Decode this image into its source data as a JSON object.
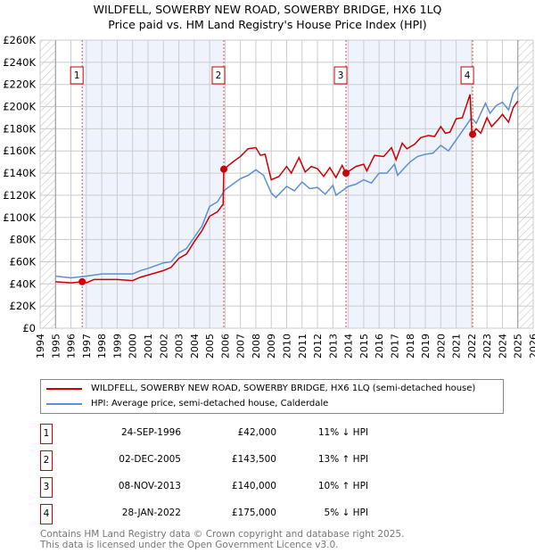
{
  "chart_data": {
    "type": "line",
    "title": "WILDFELL, SOWERBY NEW ROAD, SOWERBY BRIDGE, HX6 1LQ",
    "subtitle": "Price paid vs. HM Land Registry's House Price Index (HPI)",
    "xlim": [
      1994,
      2026
    ],
    "ylim": [
      0,
      260000
    ],
    "x_ticks": [
      "1994",
      "1995",
      "1996",
      "1997",
      "1998",
      "1999",
      "2000",
      "2001",
      "2002",
      "2003",
      "2004",
      "2005",
      "2006",
      "2007",
      "2008",
      "2009",
      "2010",
      "2011",
      "2012",
      "2013",
      "2014",
      "2015",
      "2016",
      "2017",
      "2018",
      "2019",
      "2020",
      "2021",
      "2022",
      "2023",
      "2024",
      "2025",
      "2026"
    ],
    "y_ticks": [
      "£0",
      "£20K",
      "£40K",
      "£60K",
      "£80K",
      "£100K",
      "£120K",
      "£140K",
      "£160K",
      "£180K",
      "£200K",
      "£220K",
      "£240K",
      "£260K"
    ],
    "grid": true,
    "colors": {
      "property": "#cc0000",
      "hpi": "#5b8fd6",
      "band": "#eef3fc"
    },
    "series": [
      {
        "name": "WILDFELL, SOWERBY NEW ROAD, SOWERBY BRIDGE, HX6 1LQ (semi-detached house)",
        "key": "property",
        "points": [
          [
            1995,
            42
          ],
          [
            1996,
            41
          ],
          [
            1996.73,
            42
          ],
          [
            1997,
            41
          ],
          [
            1997.5,
            44
          ],
          [
            1998,
            44
          ],
          [
            1999,
            44
          ],
          [
            2000,
            43
          ],
          [
            2000.5,
            46
          ],
          [
            2001,
            48
          ],
          [
            2002,
            52
          ],
          [
            2002.5,
            55
          ],
          [
            2003,
            63
          ],
          [
            2003.5,
            67
          ],
          [
            2004,
            78
          ],
          [
            2004.5,
            88
          ],
          [
            2005,
            101
          ],
          [
            2005.5,
            105
          ],
          [
            2005.88,
            112
          ],
          [
            2005.92,
            143.5
          ],
          [
            2006.5,
            150
          ],
          [
            2007,
            155
          ],
          [
            2007.5,
            162
          ],
          [
            2008,
            163
          ],
          [
            2008.3,
            156
          ],
          [
            2008.6,
            157
          ],
          [
            2009,
            134
          ],
          [
            2009.5,
            137
          ],
          [
            2010,
            146
          ],
          [
            2010.3,
            140
          ],
          [
            2010.8,
            154
          ],
          [
            2011.2,
            141
          ],
          [
            2011.6,
            146
          ],
          [
            2012,
            144
          ],
          [
            2012.4,
            137
          ],
          [
            2012.8,
            145
          ],
          [
            2013.2,
            136
          ],
          [
            2013.6,
            147
          ],
          [
            2013.85,
            140
          ],
          [
            2014.5,
            146
          ],
          [
            2015,
            148
          ],
          [
            2015.2,
            142
          ],
          [
            2015.7,
            156
          ],
          [
            2016.3,
            155
          ],
          [
            2016.8,
            163
          ],
          [
            2017.1,
            152
          ],
          [
            2017.5,
            167
          ],
          [
            2017.8,
            162
          ],
          [
            2018.3,
            166
          ],
          [
            2018.7,
            172
          ],
          [
            2019.2,
            174
          ],
          [
            2019.6,
            173
          ],
          [
            2020,
            182
          ],
          [
            2020.3,
            176
          ],
          [
            2020.6,
            177
          ],
          [
            2021,
            189
          ],
          [
            2021.4,
            190
          ],
          [
            2021.9,
            211
          ],
          [
            2022.02,
            175
          ],
          [
            2022.3,
            180
          ],
          [
            2022.6,
            176
          ],
          [
            2023,
            190
          ],
          [
            2023.3,
            182
          ],
          [
            2023.7,
            188
          ],
          [
            2024,
            193
          ],
          [
            2024.4,
            186
          ],
          [
            2024.7,
            199
          ],
          [
            2025,
            205
          ]
        ]
      },
      {
        "name": "HPI: Average price, semi-detached house, Calderdale",
        "key": "hpi",
        "points": [
          [
            1995,
            47
          ],
          [
            1996,
            45.5
          ],
          [
            1997,
            47
          ],
          [
            1998,
            49
          ],
          [
            1999,
            49
          ],
          [
            2000,
            49
          ],
          [
            2000.5,
            52
          ],
          [
            2001,
            54
          ],
          [
            2002,
            59
          ],
          [
            2002.5,
            60
          ],
          [
            2003,
            68
          ],
          [
            2003.5,
            72
          ],
          [
            2004,
            82
          ],
          [
            2004.5,
            92
          ],
          [
            2005,
            110
          ],
          [
            2005.5,
            114
          ],
          [
            2006,
            125
          ],
          [
            2006.5,
            130
          ],
          [
            2007,
            135
          ],
          [
            2007.5,
            138
          ],
          [
            2008,
            143
          ],
          [
            2008.5,
            138
          ],
          [
            2009,
            122
          ],
          [
            2009.3,
            118
          ],
          [
            2010,
            128
          ],
          [
            2010.5,
            124
          ],
          [
            2011,
            132
          ],
          [
            2011.5,
            126
          ],
          [
            2012,
            127
          ],
          [
            2012.5,
            121
          ],
          [
            2013,
            129
          ],
          [
            2013.2,
            120
          ],
          [
            2014,
            128
          ],
          [
            2014.5,
            130
          ],
          [
            2015,
            134
          ],
          [
            2015.5,
            131
          ],
          [
            2016,
            140
          ],
          [
            2016.5,
            140
          ],
          [
            2017,
            148
          ],
          [
            2017.2,
            138
          ],
          [
            2018,
            150
          ],
          [
            2018.5,
            155
          ],
          [
            2019,
            157
          ],
          [
            2019.5,
            158
          ],
          [
            2020,
            165
          ],
          [
            2020.5,
            160
          ],
          [
            2021,
            170
          ],
          [
            2021.5,
            180
          ],
          [
            2022,
            190
          ],
          [
            2022.3,
            185
          ],
          [
            2022.9,
            203
          ],
          [
            2023.2,
            194
          ],
          [
            2023.6,
            201
          ],
          [
            2024,
            204
          ],
          [
            2024.4,
            197
          ],
          [
            2024.7,
            212
          ],
          [
            2025,
            218
          ]
        ]
      }
    ],
    "sales": [
      {
        "label": "1",
        "x": 1996.73,
        "value": 42000,
        "date": "24-SEP-1996",
        "price": "£42,000",
        "hpi": "11% ↓ HPI"
      },
      {
        "label": "2",
        "x": 2005.92,
        "value": 143500,
        "date": "02-DEC-2005",
        "price": "£143,500",
        "hpi": "13% ↑ HPI"
      },
      {
        "label": "3",
        "x": 2013.85,
        "value": 140000,
        "date": "08-NOV-2013",
        "price": "£140,000",
        "hpi": "10% ↑ HPI"
      },
      {
        "label": "4",
        "x": 2022.07,
        "value": 175000,
        "date": "28-JAN-2022",
        "price": "£175,000",
        "hpi": "5% ↓ HPI"
      }
    ],
    "data_range": [
      1995,
      2025
    ]
  },
  "legend": {
    "property": "WILDFELL, SOWERBY NEW ROAD, SOWERBY BRIDGE, HX6 1LQ (semi-detached house)",
    "hpi": "HPI: Average price, semi-detached house, Calderdale"
  },
  "footer": {
    "line1": "Contains HM Land Registry data © Crown copyright and database right 2025.",
    "line2": "This data is licensed under the Open Government Licence v3.0."
  }
}
